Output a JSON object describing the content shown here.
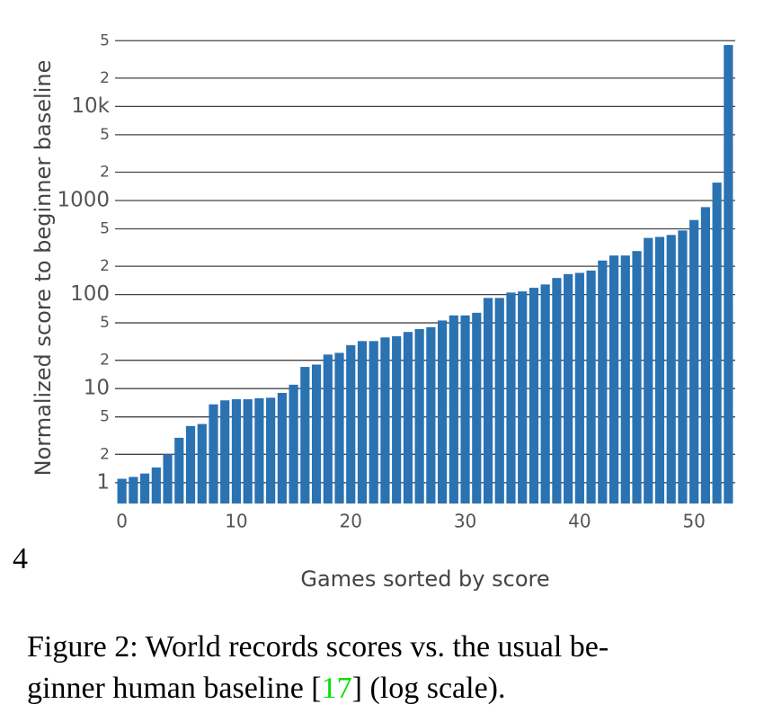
{
  "chart_data": {
    "type": "bar",
    "y_label": "Normalized score to beginner baseline",
    "x_label": "Games sorted by score",
    "x": [
      0,
      1,
      2,
      3,
      4,
      5,
      6,
      7,
      8,
      9,
      10,
      11,
      12,
      13,
      14,
      15,
      16,
      17,
      18,
      19,
      20,
      21,
      22,
      23,
      24,
      25,
      26,
      27,
      28,
      29,
      30,
      31,
      32,
      33,
      34,
      35,
      36,
      37,
      38,
      39,
      40,
      41,
      42,
      43,
      44,
      45,
      46,
      47,
      48,
      49,
      50,
      51,
      52,
      53
    ],
    "values": [
      1.1,
      1.15,
      1.25,
      1.45,
      2.0,
      3.0,
      4.0,
      4.2,
      6.8,
      7.5,
      7.7,
      7.7,
      7.9,
      8.0,
      9.0,
      11,
      17,
      18,
      23,
      24,
      29,
      32,
      32,
      35,
      36,
      40,
      43,
      45,
      53,
      60,
      60,
      64,
      92,
      92,
      105,
      108,
      118,
      128,
      150,
      165,
      170,
      180,
      230,
      260,
      260,
      290,
      400,
      410,
      430,
      480,
      620,
      850,
      1550,
      45000
    ],
    "color": "#2a72b2",
    "log_y": true,
    "grid": true,
    "xlim": [
      -0.6,
      53.6
    ],
    "xticks": [
      0,
      10,
      20,
      30,
      40,
      50
    ],
    "ylim": [
      0.6,
      60000
    ],
    "yticks": [
      1,
      2,
      5,
      10,
      {
        "value": 20,
        "label": "2"
      },
      {
        "value": 50,
        "label": "5"
      },
      100,
      {
        "value": 200,
        "label": "2"
      },
      {
        "value": 500,
        "label": "5"
      },
      1000,
      {
        "value": 2000,
        "label": "2"
      },
      {
        "value": 5000,
        "label": "5"
      },
      {
        "value": 10000,
        "label": "10k"
      },
      {
        "value": 20000,
        "label": "2"
      },
      {
        "value": 50000,
        "label": "5"
      }
    ]
  },
  "page_number": "4",
  "caption": {
    "line1": "Figure 2: World records scores vs. the usual be-",
    "line2_before": "ginner human baseline [",
    "citation": "17",
    "line2_after": "] (log scale)."
  }
}
